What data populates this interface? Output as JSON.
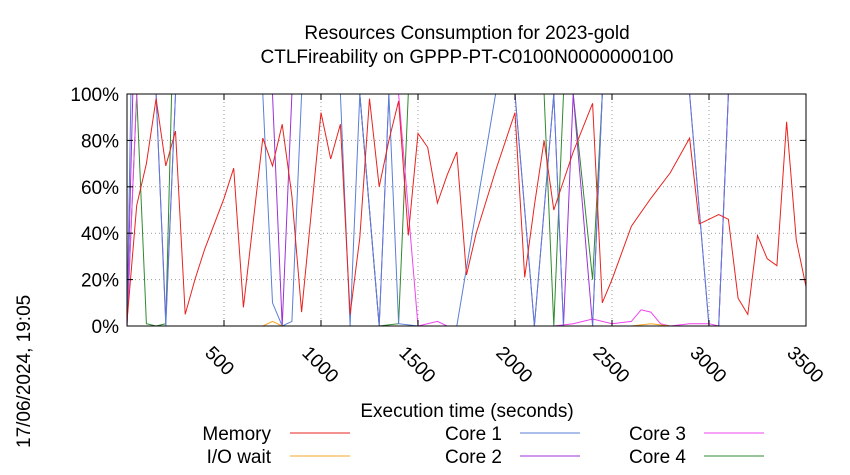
{
  "timestamp": "17/06/2024, 19:05",
  "chart_data": {
    "type": "line",
    "title": "Resources Consumption for 2023-gold",
    "subtitle": "CTLFireability on GPPP-PT-C0100N0000000100",
    "xlabel": "Execution time (seconds)",
    "ylabel": "",
    "xlim": [
      0,
      3500
    ],
    "ylim": [
      0,
      100
    ],
    "x_ticks": [
      500,
      1000,
      1500,
      2000,
      2500,
      3000,
      3500
    ],
    "y_ticks": [
      0,
      20,
      40,
      60,
      80,
      100
    ],
    "y_tick_labels": [
      "0%",
      "20%",
      "40%",
      "60%",
      "80%",
      "100%"
    ],
    "grid": true,
    "legend_position": "bottom",
    "series": [
      {
        "name": "Memory",
        "color": "#e8231f",
        "x": [
          0,
          50,
          100,
          150,
          200,
          250,
          300,
          350,
          400,
          500,
          550,
          600,
          700,
          750,
          800,
          850,
          900,
          1000,
          1050,
          1100,
          1150,
          1200,
          1250,
          1300,
          1350,
          1400,
          1450,
          1500,
          1550,
          1600,
          1650,
          1700,
          1750,
          1800,
          1900,
          2000,
          2050,
          2100,
          2150,
          2200,
          2300,
          2400,
          2450,
          2500,
          2600,
          2700,
          2800,
          2900,
          2950,
          3000,
          3050,
          3100,
          3150,
          3200,
          3250,
          3300,
          3350,
          3400,
          3450,
          3500
        ],
        "y": [
          2,
          52,
          70,
          98,
          69,
          84,
          5,
          20,
          33,
          55,
          68,
          8,
          81,
          69,
          87,
          56,
          6,
          92,
          72,
          87,
          5,
          38,
          98,
          60,
          80,
          97,
          39,
          83,
          77,
          53,
          65,
          75,
          22,
          40,
          67,
          92,
          21,
          52,
          80,
          50,
          75,
          96,
          10,
          20,
          43,
          55,
          66,
          81,
          44,
          46,
          48,
          46,
          12,
          5,
          39,
          29,
          26,
          88,
          37,
          17
        ]
      },
      {
        "name": "I/O wait",
        "color": "#f5a623",
        "x": [
          0,
          500,
          600,
          700,
          750,
          800,
          900,
          1400,
          1500,
          1600,
          1700,
          2600,
          2700,
          2800,
          2900,
          3000,
          3200,
          3500
        ],
        "y": [
          0,
          0,
          0,
          0,
          2,
          0,
          0,
          0,
          0,
          0,
          0,
          0,
          1,
          0,
          0,
          0,
          0,
          0
        ]
      },
      {
        "name": "Core 1",
        "color": "#5a7fd6",
        "x": [
          0,
          20,
          150,
          200,
          250,
          300,
          400,
          600,
          650,
          700,
          750,
          800,
          850,
          900,
          1000,
          1050,
          1100,
          1150,
          1200,
          1300,
          1350,
          1400,
          1500,
          1600,
          1700,
          1900,
          2000,
          2100,
          2200,
          2250,
          2300,
          2400,
          2450,
          2500,
          2600,
          2700,
          2800,
          2900,
          3000,
          3050,
          3100,
          3500
        ],
        "y": [
          0,
          100,
          100,
          0,
          100,
          100,
          100,
          100,
          100,
          100,
          10,
          0,
          2,
          100,
          100,
          100,
          100,
          0,
          100,
          0,
          100,
          1,
          0,
          0,
          0,
          100,
          100,
          0,
          100,
          0,
          0,
          0,
          100,
          100,
          100,
          100,
          100,
          100,
          0,
          0,
          100,
          100
        ]
      },
      {
        "name": "Core 2",
        "color": "#9b30d9",
        "x": [
          0,
          30,
          150,
          200,
          250,
          300,
          400,
          700,
          750,
          800,
          850,
          900,
          1000,
          1100,
          1150,
          1200,
          1300,
          1350,
          1450,
          1500,
          1600,
          1700,
          1900,
          2000,
          2100,
          2200,
          2250,
          2300,
          2400,
          2450,
          2500,
          2600,
          2700,
          2800,
          2900,
          3000,
          3050,
          3100,
          3500
        ],
        "y": [
          0,
          100,
          100,
          2,
          100,
          100,
          100,
          100,
          100,
          0,
          100,
          100,
          100,
          100,
          100,
          100,
          0,
          100,
          100,
          100,
          100,
          100,
          100,
          100,
          0,
          100,
          0,
          100,
          0,
          100,
          100,
          100,
          100,
          100,
          100,
          0,
          0,
          100,
          100
        ]
      },
      {
        "name": "Core 3",
        "color": "#ee44ee",
        "x": [
          0,
          50,
          150,
          200,
          250,
          300,
          500,
          700,
          800,
          900,
          1100,
          1250,
          1300,
          1400,
          1500,
          1600,
          1650,
          1700,
          2000,
          2100,
          2200,
          2300,
          2400,
          2500,
          2600,
          2650,
          2700,
          2750,
          2800,
          2900,
          3000,
          3050,
          3100,
          3500
        ],
        "y": [
          0,
          100,
          100,
          100,
          100,
          100,
          100,
          100,
          100,
          100,
          100,
          100,
          100,
          100,
          0,
          2,
          0,
          0,
          0,
          0,
          0,
          1,
          3,
          1,
          2,
          7,
          6,
          1,
          0,
          1,
          1,
          0,
          100,
          100
        ]
      },
      {
        "name": "Core 4",
        "color": "#2f8a2f",
        "x": [
          0,
          50,
          100,
          150,
          200,
          230,
          300,
          500,
          700,
          800,
          900,
          1000,
          1100,
          1200,
          1300,
          1400,
          1450,
          1500,
          1700,
          1900,
          2000,
          2050,
          2100,
          2150,
          2200,
          2250,
          2300,
          2400,
          2450,
          2500,
          2700,
          2900,
          3100,
          3500
        ],
        "y": [
          0,
          100,
          1,
          0,
          1,
          100,
          100,
          100,
          100,
          100,
          100,
          100,
          100,
          100,
          0,
          1,
          100,
          100,
          100,
          100,
          100,
          100,
          100,
          100,
          0,
          100,
          100,
          20,
          100,
          100,
          100,
          100,
          100,
          100
        ]
      }
    ]
  }
}
